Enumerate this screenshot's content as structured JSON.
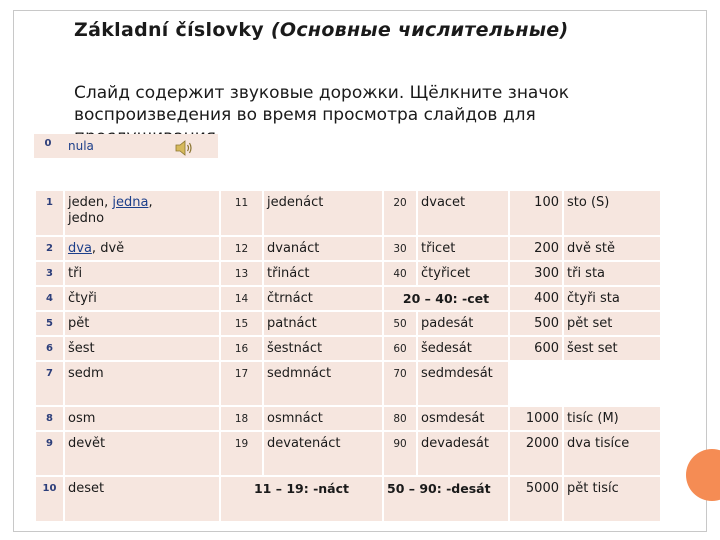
{
  "title": {
    "main": "Základní číslovky",
    "italic": "(Основные числительные)"
  },
  "subtitle": "Слайд содержит звуковые дорожки. Щёлкните значок воспроизведения во время просмотра слайдов для прослушивания",
  "zero": {
    "num": "0",
    "word": "nula"
  },
  "rows": [
    {
      "n": "1",
      "a1": "jeden",
      "a2": "jedna",
      "a3": "jedno",
      "b": "11",
      "bw": "jedenáct",
      "c": "20",
      "cw": "dvacet",
      "d": "100",
      "dw": "sto (S)"
    },
    {
      "n": "2",
      "a1": "dva",
      "a2": "dvě",
      "b": "12",
      "bw": "dvanáct",
      "c": "30",
      "cw": "třicet",
      "d": "200",
      "dw": "dvě stě"
    },
    {
      "n": "3",
      "aw": "tři",
      "b": "13",
      "bw": "třináct",
      "c": "40",
      "cw": "čtyřicet",
      "d": "300",
      "dw": "tři sta"
    },
    {
      "n": "4",
      "aw": "čtyři",
      "b": "14",
      "bw": "čtrnáct",
      "c": "20 – 40: -cet",
      "d": "400",
      "dw": "čtyři sta"
    },
    {
      "n": "5",
      "aw": "pět",
      "b": "15",
      "bw": "patnáct",
      "c": "50",
      "cw": "padesát",
      "d": "500",
      "dw": "pět set"
    },
    {
      "n": "6",
      "aw": "šest",
      "b": "16",
      "bw": "šestnáct",
      "c": "60",
      "cw": "šedesát",
      "d": "600",
      "dw": "šest set"
    },
    {
      "n": "7",
      "aw": "sedm",
      "b": "17",
      "bw": "sedmnáct",
      "c": "70",
      "cw": "sedmdesát"
    },
    {
      "n": "8",
      "aw": "osm",
      "b": "18",
      "bw": "osmnáct",
      "c": "80",
      "cw": "osmdesát",
      "d": "1000",
      "dw": "tisíc (M)"
    },
    {
      "n": "9",
      "aw": "devět",
      "b": "19",
      "bw": "devatenáct",
      "c": "90",
      "cw": "devadesát",
      "d": "2000",
      "dw": "dva tisíce"
    },
    {
      "n": "10",
      "aw": "deset",
      "b": "11 – 19: -náct",
      "c": "50 – 90: -desát",
      "d": "5000",
      "dw": "pět tisíc"
    }
  ],
  "icons": {
    "speaker": "speaker-icon"
  },
  "colors": {
    "cell_bg": "#f6e6df",
    "accent": "#f58c54",
    "number": "#2c3e7a"
  }
}
